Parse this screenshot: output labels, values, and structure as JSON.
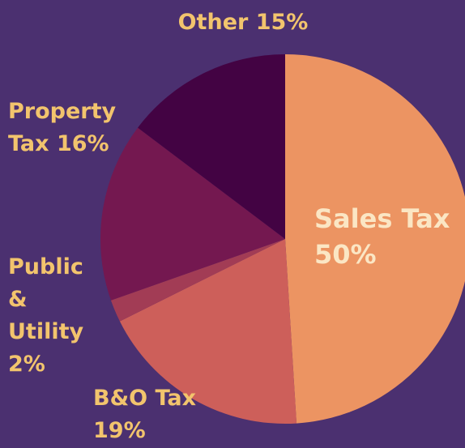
{
  "chart_data": {
    "type": "pie",
    "categories": [
      "Sales Tax",
      "B&O Tax",
      "Public & Utility",
      "Property Tax",
      "Other"
    ],
    "values": [
      50,
      19,
      2,
      16,
      15
    ],
    "value_labels": [
      "50%",
      "19%",
      "2%",
      "16%",
      "15%"
    ],
    "colors": [
      "#ec9462",
      "#cd5f5a",
      "#a23c55",
      "#741850",
      "#430343"
    ]
  }
}
